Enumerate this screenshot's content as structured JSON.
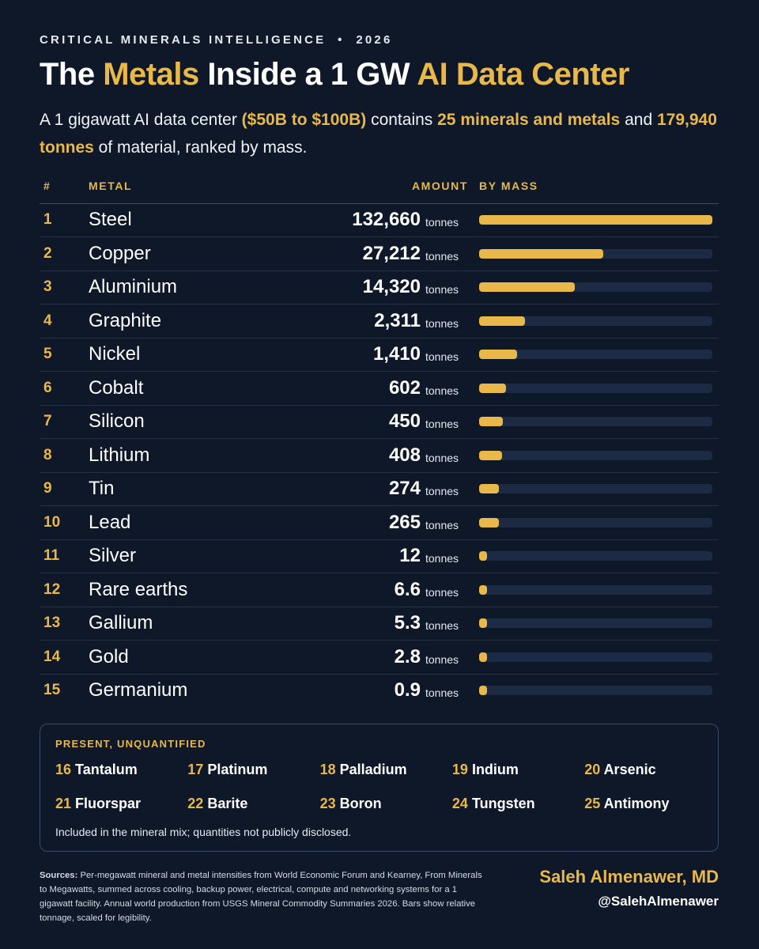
{
  "header": {
    "kicker": "CRITICAL MINERALS INTELLIGENCE",
    "year": "2026",
    "title": [
      {
        "text": "The ",
        "highlight": false
      },
      {
        "text": "Metals",
        "highlight": true
      },
      {
        "text": " Inside a 1 GW ",
        "highlight": false
      },
      {
        "text": "AI Data Center",
        "highlight": true
      }
    ],
    "subtitle": [
      {
        "text": "A 1 gigawatt AI data center ",
        "highlight": false
      },
      {
        "text": "($50B to $100B)",
        "highlight": true
      },
      {
        "text": " contains ",
        "highlight": false
      },
      {
        "text": "25 minerals and metals",
        "highlight": true
      },
      {
        "text": " and ",
        "highlight": false
      },
      {
        "text": "179,940 tonnes",
        "highlight": true
      },
      {
        "text": " of material, ranked by mass.",
        "highlight": false
      }
    ]
  },
  "table": {
    "columns": [
      "#",
      "METAL",
      "AMOUNT",
      "BY MASS"
    ],
    "rows": [
      {
        "rank": 1,
        "metal": "Steel",
        "amount": {
          "value": 132660,
          "label": "132,660"
        },
        "unit": "tonnes"
      },
      {
        "rank": 2,
        "metal": "Copper",
        "amount": {
          "value": 27212,
          "label": "27,212"
        },
        "unit": "tonnes"
      },
      {
        "rank": 3,
        "metal": "Aluminium",
        "amount": {
          "value": 14320,
          "label": "14,320"
        },
        "unit": "tonnes"
      },
      {
        "rank": 4,
        "metal": "Graphite",
        "amount": {
          "value": 2311,
          "label": "2,311"
        },
        "unit": "tonnes"
      },
      {
        "rank": 5,
        "metal": "Nickel",
        "amount": {
          "value": 1410,
          "label": "1,410"
        },
        "unit": "tonnes"
      },
      {
        "rank": 6,
        "metal": "Cobalt",
        "amount": 602,
        "unit": "tonnes"
      },
      {
        "rank": 7,
        "metal": "Silicon",
        "amount": 450,
        "unit": "tonnes"
      },
      {
        "rank": 8,
        "metal": "Lithium",
        "amount": 408,
        "unit": "tonnes"
      },
      {
        "rank": 9,
        "metal": "Tin",
        "amount": 274,
        "unit": "tonnes"
      },
      {
        "rank": 10,
        "metal": "Lead",
        "amount": 265,
        "unit": "tonnes"
      },
      {
        "rank": 11,
        "metal": "Silver",
        "amount": 12,
        "unit": "tonnes"
      },
      {
        "rank": 12,
        "metal": "Rare earths",
        "amount": 6.6,
        "unit": "tonnes"
      },
      {
        "rank": 13,
        "metal": "Gallium",
        "amount": 5.3,
        "unit": "tonnes"
      },
      {
        "rank": 14,
        "metal": "Gold",
        "amount": 2.8,
        "unit": "tonnes"
      },
      {
        "rank": 15,
        "metal": "Germanium",
        "amount": 0.9,
        "unit": "tonnes"
      }
    ]
  },
  "unquantified": {
    "title": "PRESENT, UNQUANTIFIED",
    "items": [
      {
        "rank": 16,
        "name": "Tantalum"
      },
      {
        "rank": 17,
        "name": "Platinum"
      },
      {
        "rank": 18,
        "name": "Palladium"
      },
      {
        "rank": 19,
        "name": "Indium"
      },
      {
        "rank": 20,
        "name": "Arsenic"
      },
      {
        "rank": 21,
        "name": "Fluorspar"
      },
      {
        "rank": 22,
        "name": "Barite"
      },
      {
        "rank": 23,
        "name": "Boron"
      },
      {
        "rank": 24,
        "name": "Tungsten"
      },
      {
        "rank": 25,
        "name": "Antimony"
      }
    ],
    "note": "Included in the mineral mix; quantities not publicly disclosed."
  },
  "footer": {
    "sources_label": "Sources:",
    "sources": "Per-megawatt mineral and metal intensities from World Economic Forum and Kearney, From Minerals to Megawatts, summed across cooling, backup power, electrical, compute and networking systems for a 1 gigawatt facility. Annual world production from USGS Mineral Commodity Summaries 2026. Bars show relative tonnage, scaled for legibility.",
    "author": "Saleh Almenawer, MD",
    "handle": "@SalehAlmenawer"
  }
}
